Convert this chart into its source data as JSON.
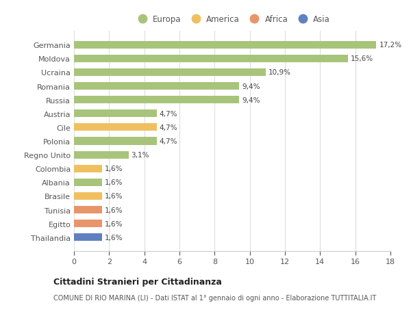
{
  "countries": [
    "Germania",
    "Moldova",
    "Ucraina",
    "Romania",
    "Russia",
    "Austria",
    "Cile",
    "Polonia",
    "Regno Unito",
    "Colombia",
    "Albania",
    "Brasile",
    "Tunisia",
    "Egitto",
    "Thailandia"
  ],
  "values": [
    17.2,
    15.6,
    10.9,
    9.4,
    9.4,
    4.7,
    4.7,
    4.7,
    3.1,
    1.6,
    1.6,
    1.6,
    1.6,
    1.6,
    1.6
  ],
  "labels": [
    "17,2%",
    "15,6%",
    "10,9%",
    "9,4%",
    "9,4%",
    "4,7%",
    "4,7%",
    "4,7%",
    "3,1%",
    "1,6%",
    "1,6%",
    "1,6%",
    "1,6%",
    "1,6%",
    "1,6%"
  ],
  "colors": [
    "#a8c47a",
    "#a8c47a",
    "#a8c47a",
    "#a8c47a",
    "#a8c47a",
    "#a8c47a",
    "#f0c060",
    "#a8c47a",
    "#a8c47a",
    "#f0c060",
    "#a8c47a",
    "#f0c060",
    "#e8956a",
    "#e8956a",
    "#6080c0"
  ],
  "legend_labels": [
    "Europa",
    "America",
    "Africa",
    "Asia"
  ],
  "legend_colors": [
    "#a8c47a",
    "#f0c060",
    "#e8956a",
    "#6080c0"
  ],
  "xlim": [
    0,
    18
  ],
  "xticks": [
    0,
    2,
    4,
    6,
    8,
    10,
    12,
    14,
    16,
    18
  ],
  "title": "Cittadini Stranieri per Cittadinanza",
  "subtitle": "COMUNE DI RIO MARINA (LI) - Dati ISTAT al 1° gennaio di ogni anno - Elaborazione TUTTITALIA.IT",
  "background_color": "#ffffff",
  "grid_color": "#dddddd",
  "bar_height": 0.55
}
